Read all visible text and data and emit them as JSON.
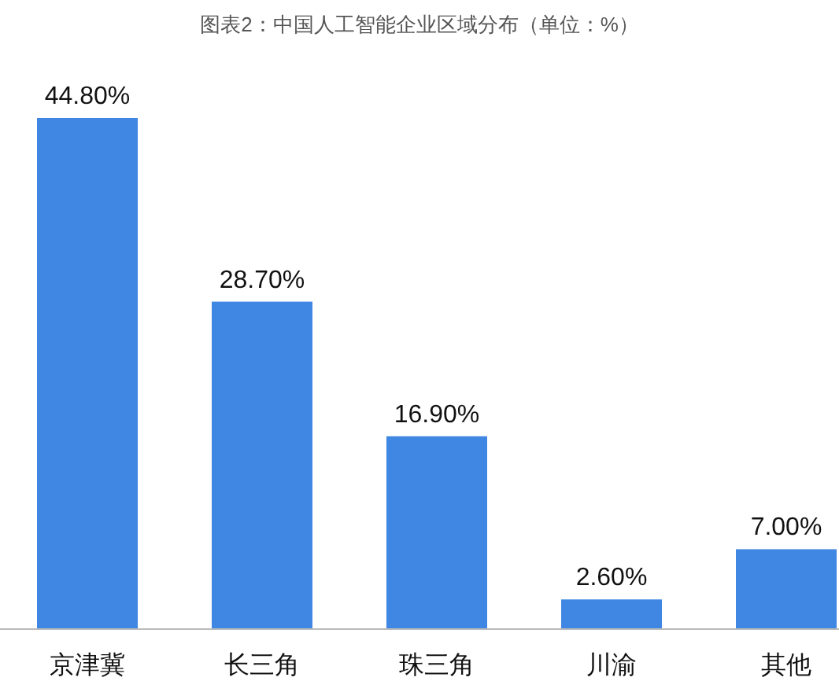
{
  "chart_data": {
    "type": "bar",
    "title": "图表2：中国人工智能企业区域分布（单位：%）",
    "categories": [
      "京津冀",
      "长三角",
      "珠三角",
      "川渝",
      "其他"
    ],
    "values": [
      44.8,
      28.7,
      16.9,
      2.6,
      7.0
    ],
    "value_labels": [
      "44.80%",
      "28.70%",
      "16.90%",
      "2.60%",
      "7.00%"
    ],
    "color": "#3f87e2"
  }
}
